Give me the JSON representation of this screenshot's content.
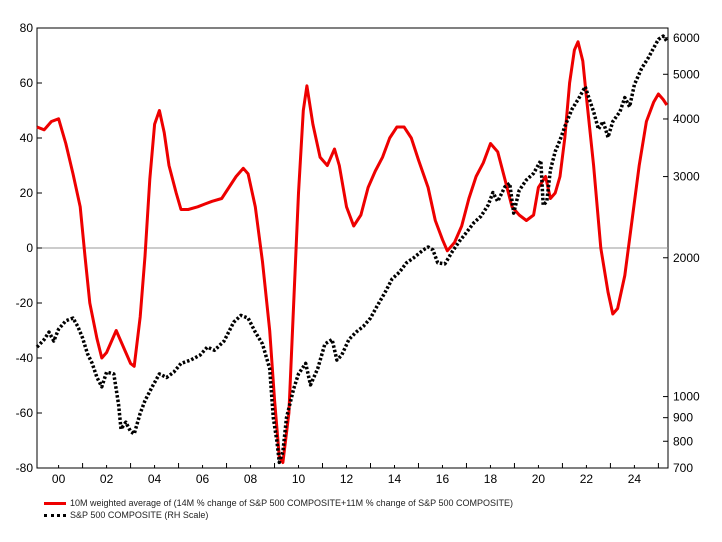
{
  "chart_data": {
    "type": "line",
    "x_axis": {
      "tick_labels": [
        "00",
        "02",
        "04",
        "06",
        "08",
        "10",
        "12",
        "14",
        "16",
        "18",
        "20",
        "22",
        "24"
      ],
      "range_years": [
        1999.1,
        2025.4
      ]
    },
    "y_left": {
      "range": [
        -80,
        80
      ],
      "ticks": [
        80,
        60,
        40,
        20,
        0,
        -20,
        -40,
        -60,
        -80
      ]
    },
    "y_right": {
      "scale": "log",
      "range": [
        700,
        6300
      ],
      "ticks": [
        6000,
        5000,
        4000,
        3000,
        2000,
        1000,
        900,
        800,
        700
      ]
    },
    "zero_line": true,
    "series": [
      {
        "name": "10M weighted average of (14M % change of S&P 500 COMPOSITE+11M % change of S&P 500 COMPOSITE)",
        "axis": "left",
        "color": "#ee0000",
        "style": "solid",
        "points": [
          [
            1999.1,
            44
          ],
          [
            1999.4,
            43
          ],
          [
            1999.7,
            46
          ],
          [
            2000.0,
            47
          ],
          [
            2000.3,
            38
          ],
          [
            2000.6,
            27
          ],
          [
            2000.9,
            15
          ],
          [
            2001.1,
            -3
          ],
          [
            2001.3,
            -20
          ],
          [
            2001.6,
            -33
          ],
          [
            2001.8,
            -40
          ],
          [
            2002.0,
            -38
          ],
          [
            2002.4,
            -30
          ],
          [
            2002.6,
            -34
          ],
          [
            2002.8,
            -38
          ],
          [
            2003.0,
            -42
          ],
          [
            2003.15,
            -43
          ],
          [
            2003.4,
            -25
          ],
          [
            2003.6,
            -3
          ],
          [
            2003.8,
            25
          ],
          [
            2004.0,
            45
          ],
          [
            2004.2,
            50
          ],
          [
            2004.4,
            42
          ],
          [
            2004.6,
            30
          ],
          [
            2004.9,
            20
          ],
          [
            2005.1,
            14
          ],
          [
            2005.4,
            14
          ],
          [
            2005.8,
            15
          ],
          [
            2006.1,
            16
          ],
          [
            2006.4,
            17
          ],
          [
            2006.8,
            18
          ],
          [
            2007.1,
            22
          ],
          [
            2007.4,
            26
          ],
          [
            2007.7,
            29
          ],
          [
            2007.9,
            27
          ],
          [
            2008.2,
            15
          ],
          [
            2008.5,
            -5
          ],
          [
            2008.8,
            -30
          ],
          [
            2009.0,
            -55
          ],
          [
            2009.2,
            -76
          ],
          [
            2009.35,
            -78
          ],
          [
            2009.6,
            -60
          ],
          [
            2009.8,
            -20
          ],
          [
            2010.0,
            20
          ],
          [
            2010.2,
            50
          ],
          [
            2010.35,
            59
          ],
          [
            2010.6,
            45
          ],
          [
            2010.9,
            33
          ],
          [
            2011.2,
            30
          ],
          [
            2011.5,
            36
          ],
          [
            2011.7,
            30
          ],
          [
            2012.0,
            15
          ],
          [
            2012.3,
            8
          ],
          [
            2012.6,
            12
          ],
          [
            2012.9,
            22
          ],
          [
            2013.2,
            28
          ],
          [
            2013.5,
            33
          ],
          [
            2013.8,
            40
          ],
          [
            2014.1,
            44
          ],
          [
            2014.4,
            44
          ],
          [
            2014.7,
            40
          ],
          [
            2015.0,
            32
          ],
          [
            2015.4,
            22
          ],
          [
            2015.7,
            10
          ],
          [
            2016.0,
            3
          ],
          [
            2016.2,
            -1
          ],
          [
            2016.5,
            2
          ],
          [
            2016.8,
            8
          ],
          [
            2017.1,
            18
          ],
          [
            2017.4,
            26
          ],
          [
            2017.7,
            31
          ],
          [
            2018.0,
            38
          ],
          [
            2018.3,
            35
          ],
          [
            2018.6,
            25
          ],
          [
            2018.9,
            15
          ],
          [
            2019.2,
            12
          ],
          [
            2019.5,
            10
          ],
          [
            2019.8,
            12
          ],
          [
            2020.0,
            22
          ],
          [
            2020.3,
            26
          ],
          [
            2020.5,
            18
          ],
          [
            2020.7,
            20
          ],
          [
            2020.9,
            26
          ],
          [
            2021.1,
            40
          ],
          [
            2021.3,
            60
          ],
          [
            2021.5,
            72
          ],
          [
            2021.65,
            75
          ],
          [
            2021.85,
            68
          ],
          [
            2022.0,
            55
          ],
          [
            2022.3,
            30
          ],
          [
            2022.6,
            0
          ],
          [
            2022.9,
            -16
          ],
          [
            2023.1,
            -24
          ],
          [
            2023.3,
            -22
          ],
          [
            2023.6,
            -10
          ],
          [
            2023.9,
            10
          ],
          [
            2024.2,
            30
          ],
          [
            2024.5,
            46
          ],
          [
            2024.8,
            53
          ],
          [
            2025.0,
            56
          ],
          [
            2025.2,
            54
          ],
          [
            2025.35,
            52
          ]
        ]
      },
      {
        "name": "S&P 500 COMPOSITE (RH Scale)",
        "axis": "right",
        "color": "#000000",
        "style": "dotted",
        "points": [
          [
            1999.1,
            1280
          ],
          [
            1999.4,
            1330
          ],
          [
            1999.6,
            1380
          ],
          [
            1999.8,
            1320
          ],
          [
            2000.0,
            1400
          ],
          [
            2000.3,
            1460
          ],
          [
            2000.6,
            1480
          ],
          [
            2000.8,
            1420
          ],
          [
            2001.0,
            1340
          ],
          [
            2001.2,
            1240
          ],
          [
            2001.4,
            1180
          ],
          [
            2001.6,
            1100
          ],
          [
            2001.8,
            1050
          ],
          [
            2002.0,
            1130
          ],
          [
            2002.3,
            1120
          ],
          [
            2002.5,
            960
          ],
          [
            2002.6,
            850
          ],
          [
            2002.8,
            880
          ],
          [
            2003.0,
            840
          ],
          [
            2003.15,
            830
          ],
          [
            2003.4,
            920
          ],
          [
            2003.6,
            980
          ],
          [
            2003.9,
            1050
          ],
          [
            2004.2,
            1120
          ],
          [
            2004.5,
            1100
          ],
          [
            2004.8,
            1130
          ],
          [
            2005.1,
            1180
          ],
          [
            2005.5,
            1200
          ],
          [
            2005.9,
            1230
          ],
          [
            2006.2,
            1280
          ],
          [
            2006.5,
            1260
          ],
          [
            2006.9,
            1320
          ],
          [
            2007.3,
            1450
          ],
          [
            2007.6,
            1500
          ],
          [
            2007.9,
            1480
          ],
          [
            2008.2,
            1380
          ],
          [
            2008.5,
            1300
          ],
          [
            2008.8,
            1150
          ],
          [
            2008.95,
            900
          ],
          [
            2009.1,
            800
          ],
          [
            2009.2,
            720
          ],
          [
            2009.35,
            760
          ],
          [
            2009.5,
            900
          ],
          [
            2009.8,
            1040
          ],
          [
            2010.0,
            1120
          ],
          [
            2010.3,
            1180
          ],
          [
            2010.5,
            1060
          ],
          [
            2010.8,
            1150
          ],
          [
            2011.1,
            1300
          ],
          [
            2011.4,
            1330
          ],
          [
            2011.6,
            1200
          ],
          [
            2011.8,
            1230
          ],
          [
            2012.1,
            1330
          ],
          [
            2012.4,
            1380
          ],
          [
            2012.7,
            1420
          ],
          [
            2013.0,
            1480
          ],
          [
            2013.3,
            1580
          ],
          [
            2013.6,
            1680
          ],
          [
            2013.9,
            1800
          ],
          [
            2014.2,
            1860
          ],
          [
            2014.5,
            1950
          ],
          [
            2014.8,
            2000
          ],
          [
            2015.2,
            2080
          ],
          [
            2015.4,
            2110
          ],
          [
            2015.6,
            2080
          ],
          [
            2015.8,
            1950
          ],
          [
            2016.1,
            1940
          ],
          [
            2016.4,
            2060
          ],
          [
            2016.7,
            2170
          ],
          [
            2017.0,
            2270
          ],
          [
            2017.3,
            2380
          ],
          [
            2017.6,
            2460
          ],
          [
            2017.9,
            2600
          ],
          [
            2018.1,
            2770
          ],
          [
            2018.3,
            2650
          ],
          [
            2018.6,
            2850
          ],
          [
            2018.8,
            2900
          ],
          [
            2018.97,
            2500
          ],
          [
            2019.2,
            2800
          ],
          [
            2019.5,
            2950
          ],
          [
            2019.8,
            3050
          ],
          [
            2020.1,
            3250
          ],
          [
            2020.2,
            2600
          ],
          [
            2020.35,
            2650
          ],
          [
            2020.5,
            3100
          ],
          [
            2020.7,
            3400
          ],
          [
            2020.9,
            3600
          ],
          [
            2021.1,
            3850
          ],
          [
            2021.4,
            4200
          ],
          [
            2021.7,
            4450
          ],
          [
            2021.95,
            4700
          ],
          [
            2022.1,
            4450
          ],
          [
            2022.3,
            4150
          ],
          [
            2022.5,
            3800
          ],
          [
            2022.7,
            3950
          ],
          [
            2022.9,
            3650
          ],
          [
            2023.1,
            3950
          ],
          [
            2023.4,
            4150
          ],
          [
            2023.6,
            4450
          ],
          [
            2023.8,
            4250
          ],
          [
            2024.0,
            4750
          ],
          [
            2024.3,
            5150
          ],
          [
            2024.6,
            5450
          ],
          [
            2024.8,
            5700
          ],
          [
            2025.0,
            5950
          ],
          [
            2025.2,
            6050
          ],
          [
            2025.35,
            5900
          ]
        ]
      }
    ],
    "legend": {
      "placement": "bottom-left",
      "items": [
        "10M weighted average of (14M % change of S&P 500 COMPOSITE+11M % change of S&P 500 COMPOSITE)",
        "S&P 500 COMPOSITE (RH Scale)"
      ]
    }
  }
}
